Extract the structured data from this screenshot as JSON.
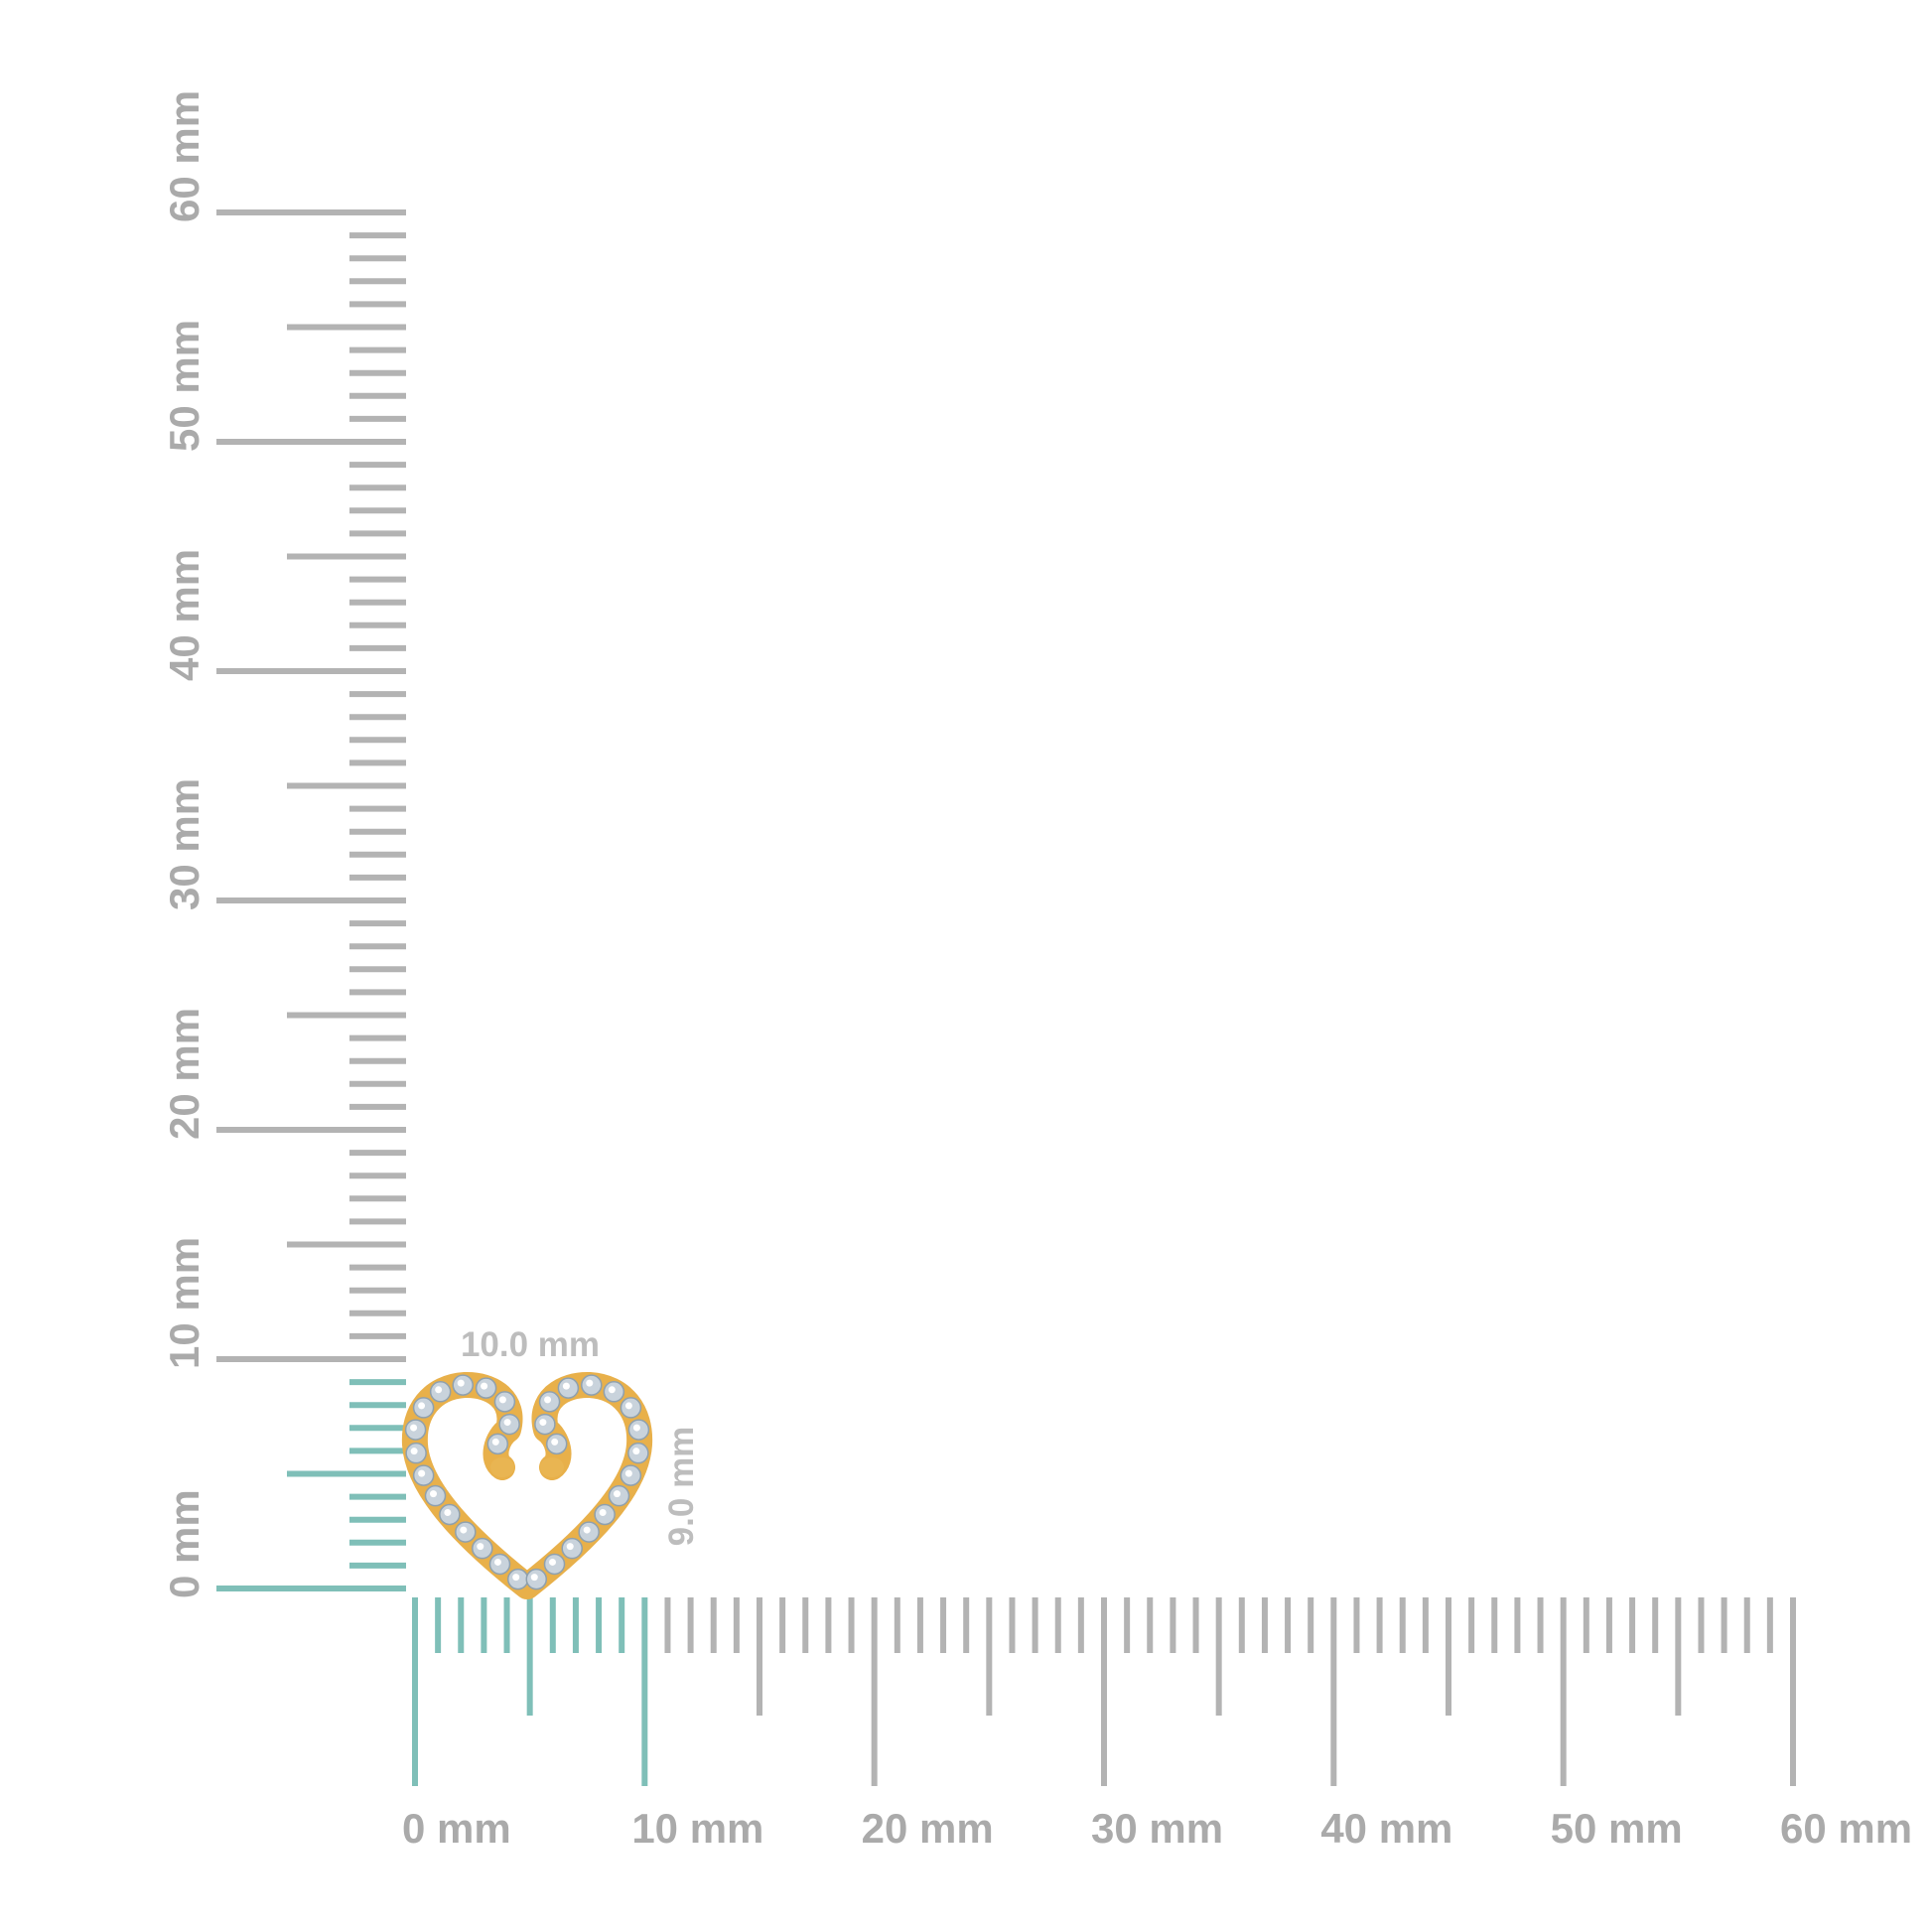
{
  "colors": {
    "ruler_gray": "#b3b3b3",
    "ruler_highlight": "#7fbfb8",
    "label_gray": "#aaaaaa",
    "dimension_label": "#bdbdbd",
    "gold": "#e8b04a",
    "diamond": "#c9d3dc"
  },
  "rulers": {
    "unit": "mm",
    "range_mm": [
      0,
      60
    ],
    "highlight_mm": [
      0,
      10
    ],
    "horizontal_labels": [
      "0 mm",
      "10 mm",
      "20 mm",
      "30 mm",
      "40 mm",
      "50 mm",
      "60 mm"
    ],
    "vertical_labels": [
      "0 mm",
      "10 mm",
      "20 mm",
      "30 mm",
      "40 mm",
      "50 mm",
      "60 mm"
    ]
  },
  "product": {
    "type": "heart pendant",
    "width_label": "10.0 mm",
    "height_label": "9.0 mm",
    "width_mm": 10.0,
    "height_mm": 9.0
  }
}
